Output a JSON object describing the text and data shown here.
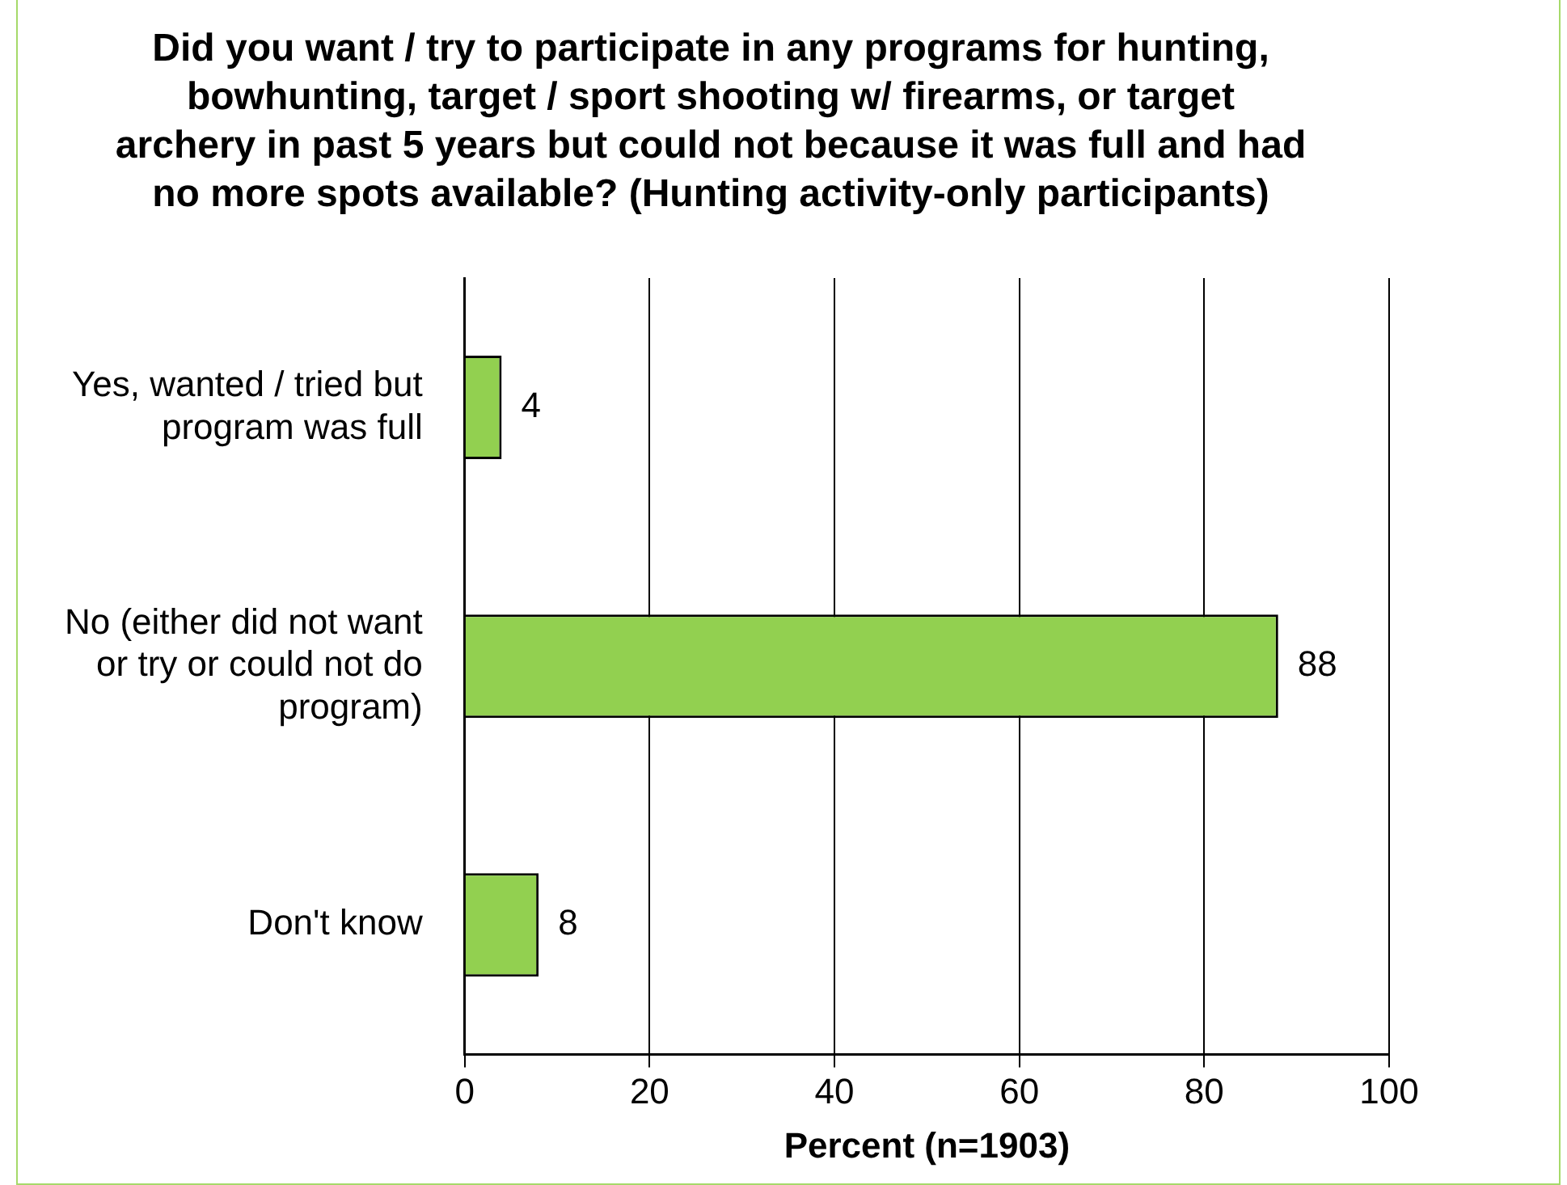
{
  "chart_data": {
    "type": "bar",
    "orientation": "horizontal",
    "title": "Did you want / try to participate in any programs for hunting, bowhunting, target / sport shooting w/ firearms, or target archery in past 5 years but could not because it was full and had no more spots available? (Hunting activity-only participants)",
    "categories": [
      "Yes, wanted / tried but program was full",
      "No (either did not want or try or could not do program)",
      "Don't know"
    ],
    "values": [
      4,
      88,
      8
    ],
    "color": "#92d050",
    "xlabel": "Percent (n=1903)",
    "xlim": [
      0,
      100
    ],
    "xticks": [
      0,
      20,
      40,
      60,
      80,
      100
    ],
    "grid": "x",
    "data_labels": true,
    "legend": false
  }
}
